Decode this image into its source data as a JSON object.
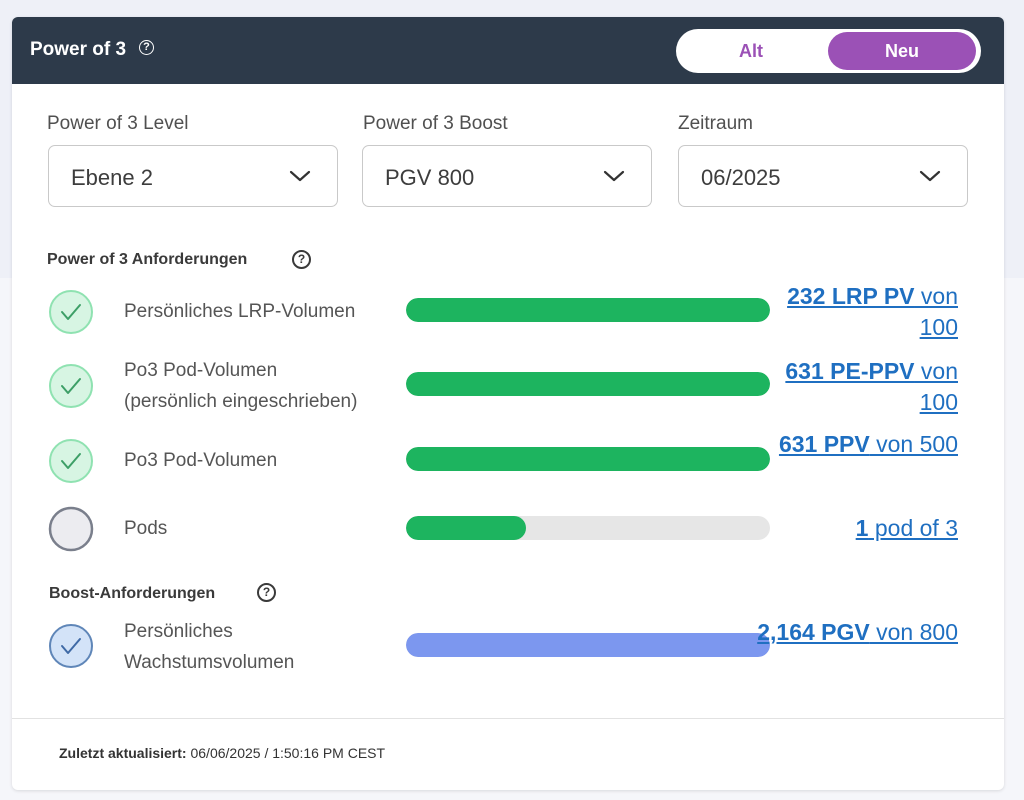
{
  "header": {
    "title": "Power of 3",
    "toggle": {
      "options": [
        "Alt",
        "Neu"
      ],
      "selected": "Neu"
    }
  },
  "colors": {
    "header_bg": "#2d3a4a",
    "toggle_accent": "#9b51b6",
    "complete_bar": "#1db45f",
    "boost_bar": "#7c97ef",
    "link": "#1f6fc1"
  },
  "filters": [
    {
      "label": "Power of 3 Level",
      "value": "Ebene 2"
    },
    {
      "label": "Power of 3 Boost",
      "value": "PGV 800"
    },
    {
      "label": "Zeitraum",
      "value": "06/2025"
    }
  ],
  "requirements": {
    "title": "Power of 3 Anforderungen",
    "rows": [
      {
        "label_lines": [
          "Persönliches LRP-Volumen"
        ],
        "status": "complete",
        "progress": 1.0,
        "value_bold": "232 LRP PV",
        "value_rest": " von 100"
      },
      {
        "label_lines": [
          "Po3 Pod-Volumen",
          "(persönlich eingeschrieben)"
        ],
        "status": "complete",
        "progress": 1.0,
        "value_bold": "631 PE-PPV",
        "value_rest": " von 100"
      },
      {
        "label_lines": [
          "Po3 Pod-Volumen"
        ],
        "status": "complete",
        "progress": 1.0,
        "value_bold": "631 PPV",
        "value_rest": " von 500"
      },
      {
        "label_lines": [
          "Pods"
        ],
        "status": "incomplete",
        "progress": 0.33,
        "value_bold": "1",
        "value_rest": " pod of 3"
      }
    ]
  },
  "boost": {
    "title": "Boost-Anforderungen",
    "rows": [
      {
        "label_lines": [
          "Persönliches",
          "Wachstumsvolumen"
        ],
        "status": "boost",
        "progress": 1.0,
        "value_bold": "2,164 PGV",
        "value_rest": " von 800"
      }
    ]
  },
  "footer": {
    "label": "Zuletzt aktualisiert:",
    "value": "06/06/2025 / 1:50:16 PM CEST"
  }
}
